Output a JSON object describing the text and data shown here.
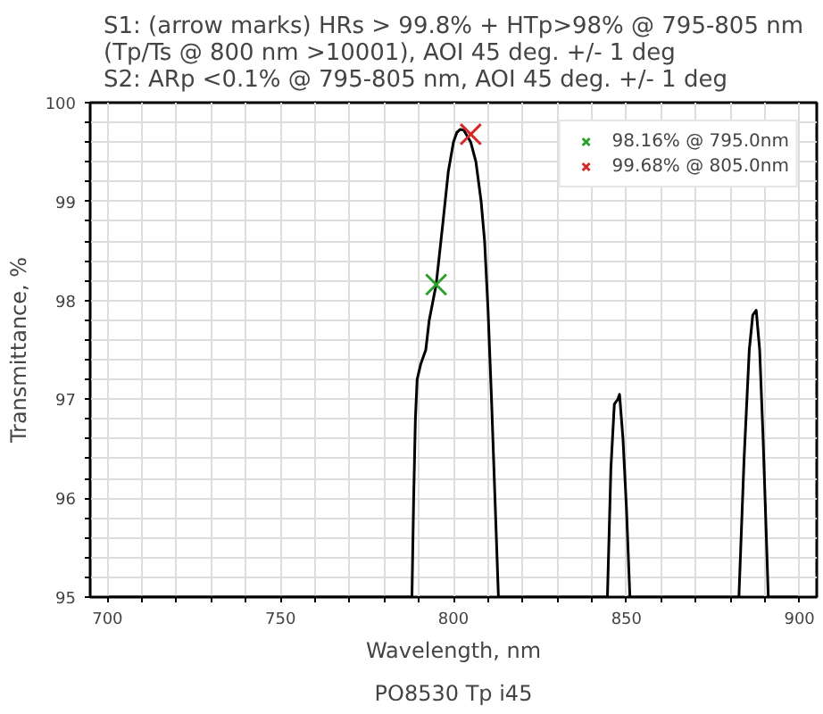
{
  "chart_data": {
    "type": "line",
    "title": "S1: (arrow marks) HRs > 99.8% + HTp>98% @ 795-805 nm\n(Tp/Ts @ 800 nm >10001), AOI 45 deg. +/- 1 deg\nS2: ARp <0.1% @ 795-805 nm, AOI 45 deg. +/- 1 deg",
    "xlabel": "Wavelength, nm",
    "ylabel": "Transmittance, %",
    "annotations": [
      "PO8530 Tp i45"
    ],
    "series": [
      {
        "color": "#000000",
        "x": [
          700,
          788,
          788.5,
          789,
          789.5,
          790.5,
          792,
          793,
          795,
          797,
          798.5,
          800,
          801,
          802,
          803,
          805,
          806.5,
          808,
          809,
          810,
          811,
          812,
          813,
          844.5,
          845.5,
          846.5,
          847.5,
          848,
          849,
          850,
          851,
          882.5,
          884,
          885.5,
          886.5,
          887.5,
          888.5,
          889.5,
          891,
          900
        ],
        "values": [
          95,
          95,
          96,
          96.8,
          97.2,
          97.35,
          97.5,
          97.8,
          98.16,
          98.8,
          99.3,
          99.6,
          99.7,
          99.73,
          99.72,
          99.6,
          99.4,
          99,
          98.6,
          97.9,
          97,
          96,
          95,
          95,
          96.3,
          96.95,
          97,
          97.05,
          96.6,
          95.9,
          95,
          95,
          96.4,
          97.5,
          97.85,
          97.9,
          97.5,
          96.6,
          95,
          95
        ]
      },
      {
        "type": "scatter",
        "name": "98.16% @ 795.0nm",
        "color": "#2ca02c",
        "marker": "cross",
        "x": [
          795
        ],
        "values": [
          98.16
        ]
      },
      {
        "type": "scatter",
        "name": "99.68% @ 805.0nm",
        "color": "#d62728",
        "marker": "cross",
        "x": [
          805
        ],
        "values": [
          99.68
        ]
      }
    ],
    "xlim": [
      695,
      905
    ],
    "ylim": [
      95,
      100
    ],
    "xticks": [
      700,
      {
        "value": 710,
        "label": null
      },
      {
        "value": 720,
        "label": null
      },
      {
        "value": 730,
        "label": null
      },
      {
        "value": 740,
        "label": null
      },
      750,
      {
        "value": 760,
        "label": null
      },
      {
        "value": 770,
        "label": null
      },
      {
        "value": 780,
        "label": null
      },
      {
        "value": 790,
        "label": null
      },
      800,
      {
        "value": 810,
        "label": null
      },
      {
        "value": 820,
        "label": null
      },
      {
        "value": 830,
        "label": null
      },
      {
        "value": 840,
        "label": null
      },
      850,
      {
        "value": 860,
        "label": null
      },
      {
        "value": 870,
        "label": null
      },
      {
        "value": 880,
        "label": null
      },
      {
        "value": 890,
        "label": null
      },
      900
    ],
    "yticks": [
      95,
      {
        "value": 95.2,
        "label": null
      },
      {
        "value": 95.4,
        "label": null
      },
      {
        "value": 95.6,
        "label": null
      },
      {
        "value": 95.8,
        "label": null
      },
      96,
      {
        "value": 96.2,
        "label": null
      },
      {
        "value": 96.4,
        "label": null
      },
      {
        "value": 96.6,
        "label": null
      },
      {
        "value": 96.8,
        "label": null
      },
      97,
      {
        "value": 97.2,
        "label": null
      },
      {
        "value": 97.4,
        "label": null
      },
      {
        "value": 97.6,
        "label": null
      },
      {
        "value": 97.8,
        "label": null
      },
      98,
      {
        "value": 98.2,
        "label": null
      },
      {
        "value": 98.4,
        "label": null
      },
      {
        "value": 98.6,
        "label": null
      },
      {
        "value": 98.8,
        "label": null
      },
      99,
      {
        "value": 99.2,
        "label": null
      },
      {
        "value": 99.4,
        "label": null
      },
      {
        "value": 99.6,
        "label": null
      },
      {
        "value": 99.8,
        "label": null
      },
      100
    ],
    "grid": true,
    "legend": "top right"
  }
}
